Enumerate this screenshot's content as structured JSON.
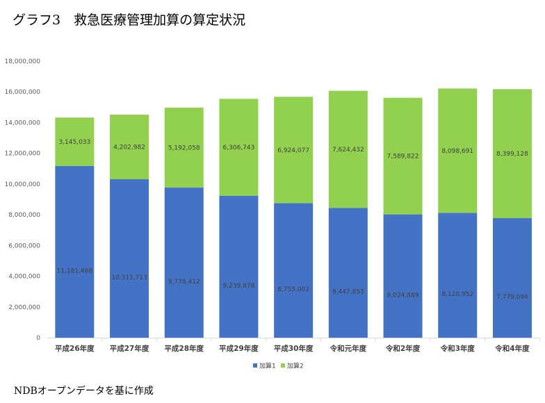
{
  "title": "グラフ3　救急医療管理加算の算定状況",
  "footer": "NDBオープンデータを基に作成",
  "colors": {
    "series1": "#4472C4",
    "series2": "#92D050"
  },
  "chart_data": {
    "type": "bar",
    "stacked": true,
    "title": "グラフ3　救急医療管理加算の算定状況",
    "xlabel": "",
    "ylabel": "",
    "ylim": [
      0,
      18000000
    ],
    "yticks": [
      0,
      2000000,
      4000000,
      6000000,
      8000000,
      10000000,
      12000000,
      14000000,
      16000000,
      18000000
    ],
    "ytick_labels": [
      "0",
      "2,000,000",
      "4,000,000",
      "6,000,000",
      "8,000,000",
      "10,000,000",
      "12,000,000",
      "14,000,000",
      "16,000,000",
      "18,000,000"
    ],
    "grid": false,
    "legend": "bottom",
    "categories": [
      "平成26年度",
      "平成27年度",
      "平成28年度",
      "平成29年度",
      "平成30年度",
      "令和元年度",
      "令和2年度",
      "令和3年度",
      "令和4年度"
    ],
    "series": [
      {
        "name": "加算1",
        "values": [
          11181468,
          10311713,
          9778412,
          9239878,
          8755002,
          8447853,
          8024889,
          8120952,
          7779094
        ],
        "labels": [
          "11,181,468",
          "10,311,713",
          "9,778,412",
          "9,239,878",
          "8,755,002",
          "8,447,853",
          "8,024,889",
          "8,120,952",
          "7,779,094"
        ]
      },
      {
        "name": "加算2",
        "values": [
          3145033,
          4202982,
          5192058,
          6306743,
          6924077,
          7624432,
          7589822,
          8098691,
          8399128
        ],
        "labels": [
          "3,145,033",
          "4,202,982",
          "5,192,058",
          "6,306,743",
          "6,924,077",
          "7,624,432",
          "7,589,822",
          "8,098,691",
          "8,399,128"
        ]
      }
    ]
  }
}
